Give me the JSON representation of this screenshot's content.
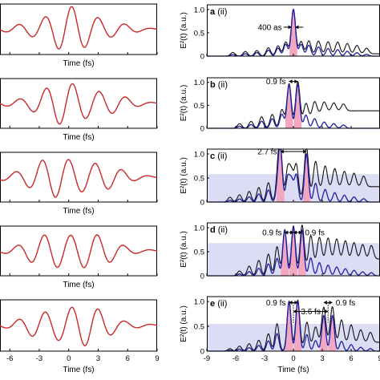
{
  "figure": {
    "left_xlabel": "Time (fs)",
    "right_xlabel": "Time (fs)",
    "right_ylabel": "E²(t) (a.u.)",
    "sub_label": "(ii)",
    "colors": {
      "field": "#c8282a",
      "total": "#111111",
      "component": "#1f1fa6",
      "pulse_fill": "#f3a6c0",
      "band": "#dcdcf4"
    }
  },
  "chart_data": [
    {
      "panel": "left-1",
      "type": "line",
      "xlim": [
        -7,
        9
      ],
      "x_ticks": [],
      "series": [
        {
          "kind": "electric-field",
          "carrier_fs": 2.7,
          "envelope_fs": 4.6,
          "center_fs": 0.3,
          "shape": [
            0.45,
            0.95,
            0.55,
            0.6,
            0.5
          ]
        }
      ]
    },
    {
      "panel": "left-2",
      "type": "line",
      "xlim": [
        -7,
        9
      ],
      "x_ticks": [],
      "series": [
        {
          "kind": "electric-field",
          "carrier_fs": 2.7,
          "envelope_fs": 4.8,
          "center_fs": 0.4,
          "shape": [
            0.5,
            0.85,
            0.65,
            0.55,
            0.45
          ]
        }
      ]
    },
    {
      "panel": "left-3",
      "type": "line",
      "xlim": [
        -7,
        9
      ],
      "x_ticks": [],
      "series": [
        {
          "kind": "electric-field",
          "carrier_fs": 2.7,
          "envelope_fs": 5.2,
          "center_fs": 0.0,
          "shape": [
            0.55,
            0.8,
            0.8,
            0.7,
            0.55
          ]
        }
      ]
    },
    {
      "panel": "left-4",
      "type": "line",
      "xlim": [
        -7,
        9
      ],
      "x_ticks": [],
      "series": [
        {
          "kind": "electric-field",
          "carrier_fs": 2.7,
          "envelope_fs": 4.9,
          "center_fs": 0.2,
          "shape": [
            0.5,
            0.9,
            0.75,
            0.55,
            0.5
          ]
        }
      ]
    },
    {
      "panel": "left-5",
      "type": "line",
      "xlim": [
        -7,
        9
      ],
      "x_ticks": [
        -6,
        -3,
        0,
        3,
        6,
        9
      ],
      "series": [
        {
          "kind": "electric-field",
          "carrier_fs": 2.7,
          "envelope_fs": 4.7,
          "center_fs": 0.3,
          "shape": [
            0.5,
            0.95,
            0.6,
            0.6,
            0.5
          ]
        }
      ]
    },
    {
      "panel": "a",
      "label": "a",
      "type": "line",
      "xlim": [
        -9,
        9
      ],
      "ylim": [
        0,
        1.1
      ],
      "y_ticks": [
        0,
        0.5,
        1.0
      ],
      "annotation": "400 as",
      "band": null,
      "peaks": [
        {
          "t": -6.3,
          "h": 0.08
        },
        {
          "t": -5.0,
          "h": 0.1
        },
        {
          "t": -3.8,
          "h": 0.12
        },
        {
          "t": -2.6,
          "h": 0.18
        },
        {
          "t": -1.6,
          "h": 0.22
        },
        {
          "t": -0.8,
          "h": 0.3
        },
        {
          "t": 0.0,
          "h": 1.0,
          "main": true
        },
        {
          "t": 0.8,
          "h": 0.3
        },
        {
          "t": 1.6,
          "h": 0.3
        },
        {
          "t": 2.6,
          "h": 0.28
        },
        {
          "t": 3.6,
          "h": 0.26
        },
        {
          "t": 4.6,
          "h": 0.25
        },
        {
          "t": 5.6,
          "h": 0.22
        },
        {
          "t": 6.6,
          "h": 0.18
        },
        {
          "t": 7.6,
          "h": 0.12
        }
      ],
      "width_fs": 0.32,
      "component_fraction": 0.9,
      "tail": 0.05
    },
    {
      "panel": "b",
      "label": "b",
      "type": "line",
      "xlim": [
        -9,
        9
      ],
      "ylim": [
        0,
        1.1
      ],
      "y_ticks": [
        0,
        0.5,
        1.0
      ],
      "annotation": "0.9 fs",
      "band": null,
      "peaks": [
        {
          "t": -5.6,
          "h": 0.1
        },
        {
          "t": -4.4,
          "h": 0.15
        },
        {
          "t": -3.3,
          "h": 0.25
        },
        {
          "t": -2.2,
          "h": 0.3
        },
        {
          "t": -1.2,
          "h": 0.4
        },
        {
          "t": -0.45,
          "h": 0.95,
          "main": true
        },
        {
          "t": 0.45,
          "h": 0.95,
          "main": true
        },
        {
          "t": 1.3,
          "h": 0.38
        },
        {
          "t": 2.2,
          "h": 0.3
        },
        {
          "t": 3.2,
          "h": 0.22
        },
        {
          "t": 4.2,
          "h": 0.18
        },
        {
          "t": 5.2,
          "h": 0.15
        }
      ],
      "width_fs": 0.32,
      "component_fraction": 0.85,
      "tail": 0.38
    },
    {
      "panel": "c",
      "label": "c",
      "type": "line",
      "xlim": [
        -9,
        9
      ],
      "ylim": [
        0,
        1.1
      ],
      "y_ticks": [
        0,
        0.5,
        1.0
      ],
      "annotation": "2.7 fs",
      "band": [
        0,
        0.58
      ],
      "peaks": [
        {
          "t": -6.6,
          "h": 0.1
        },
        {
          "t": -5.6,
          "h": 0.15
        },
        {
          "t": -4.6,
          "h": 0.22
        },
        {
          "t": -3.6,
          "h": 0.3
        },
        {
          "t": -2.6,
          "h": 0.4
        },
        {
          "t": -1.6,
          "h": 0.5
        },
        {
          "t": -0.6,
          "h": 0.65
        },
        {
          "t": -1.35,
          "h": 0.0
        },
        {
          "t": -1.1,
          "h": 0.0
        },
        {
          "t": -1.35,
          "h": 1.0,
          "main": true
        },
        {
          "t": -0.2,
          "h": 0.55
        },
        {
          "t": 0.3,
          "h": 0.72
        },
        {
          "t": 1.35,
          "h": 1.0,
          "main": true
        },
        {
          "t": 2.3,
          "h": 0.6
        },
        {
          "t": 3.3,
          "h": 0.45
        },
        {
          "t": 4.3,
          "h": 0.38
        },
        {
          "t": 5.3,
          "h": 0.32
        },
        {
          "t": 6.3,
          "h": 0.28
        },
        {
          "t": 7.3,
          "h": 0.22
        }
      ],
      "width_fs": 0.3,
      "component_fraction": 0.8,
      "tail": 0.32
    },
    {
      "panel": "d",
      "label": "d",
      "type": "line",
      "xlim": [
        -9,
        9
      ],
      "ylim": [
        0,
        1.1
      ],
      "y_ticks": [
        0,
        0.5,
        1.0
      ],
      "annotation_left": "0.9 fs",
      "annotation_right": "0.9 fs",
      "band": [
        0,
        0.68
      ],
      "peaks": [
        {
          "t": -5.6,
          "h": 0.1
        },
        {
          "t": -4.6,
          "h": 0.2
        },
        {
          "t": -3.6,
          "h": 0.32
        },
        {
          "t": -2.6,
          "h": 0.45
        },
        {
          "t": -1.7,
          "h": 0.6
        },
        {
          "t": -0.9,
          "h": 0.95,
          "main": true
        },
        {
          "t": 0.0,
          "h": 1.0,
          "main": true
        },
        {
          "t": 0.9,
          "h": 0.95,
          "main": true
        },
        {
          "t": 1.8,
          "h": 0.62
        },
        {
          "t": 2.7,
          "h": 0.5
        },
        {
          "t": 3.6,
          "h": 0.45
        },
        {
          "t": 4.5,
          "h": 0.42
        },
        {
          "t": 5.4,
          "h": 0.38
        },
        {
          "t": 6.3,
          "h": 0.34
        },
        {
          "t": 7.2,
          "h": 0.3
        },
        {
          "t": 8.1,
          "h": 0.28
        }
      ],
      "width_fs": 0.3,
      "component_fraction": 0.7,
      "tail": 0.35
    },
    {
      "panel": "e",
      "label": "e",
      "type": "line",
      "xlim": [
        -9,
        9
      ],
      "ylim": [
        0,
        1.1
      ],
      "y_ticks": [
        0,
        0.5,
        1.0
      ],
      "x_ticks": [
        -9,
        -6,
        -3,
        0,
        3,
        6,
        9
      ],
      "annotation_left": "0.9 fs",
      "annotation_mid": "3.6 fs",
      "annotation_right": "0.9 fs",
      "band": [
        0,
        0.55
      ],
      "peaks": [
        {
          "t": -6.6,
          "h": 0.05
        },
        {
          "t": -5.6,
          "h": 0.1
        },
        {
          "t": -4.6,
          "h": 0.15
        },
        {
          "t": -3.6,
          "h": 0.22
        },
        {
          "t": -2.6,
          "h": 0.35
        },
        {
          "t": -1.7,
          "h": 0.55
        },
        {
          "t": -0.45,
          "h": 1.0,
          "main": true
        },
        {
          "t": 0.45,
          "h": 1.0,
          "main": true
        },
        {
          "t": 1.4,
          "h": 0.5
        },
        {
          "t": 2.3,
          "h": 0.35
        },
        {
          "t": 3.15,
          "h": 0.72,
          "main": true
        },
        {
          "t": 4.05,
          "h": 0.72,
          "main": true
        },
        {
          "t": 5.0,
          "h": 0.45
        },
        {
          "t": 6.0,
          "h": 0.35
        },
        {
          "t": 7.0,
          "h": 0.25
        },
        {
          "t": 8.0,
          "h": 0.2
        }
      ],
      "width_fs": 0.3,
      "component_fraction": 0.75,
      "tail": 0.18
    }
  ]
}
